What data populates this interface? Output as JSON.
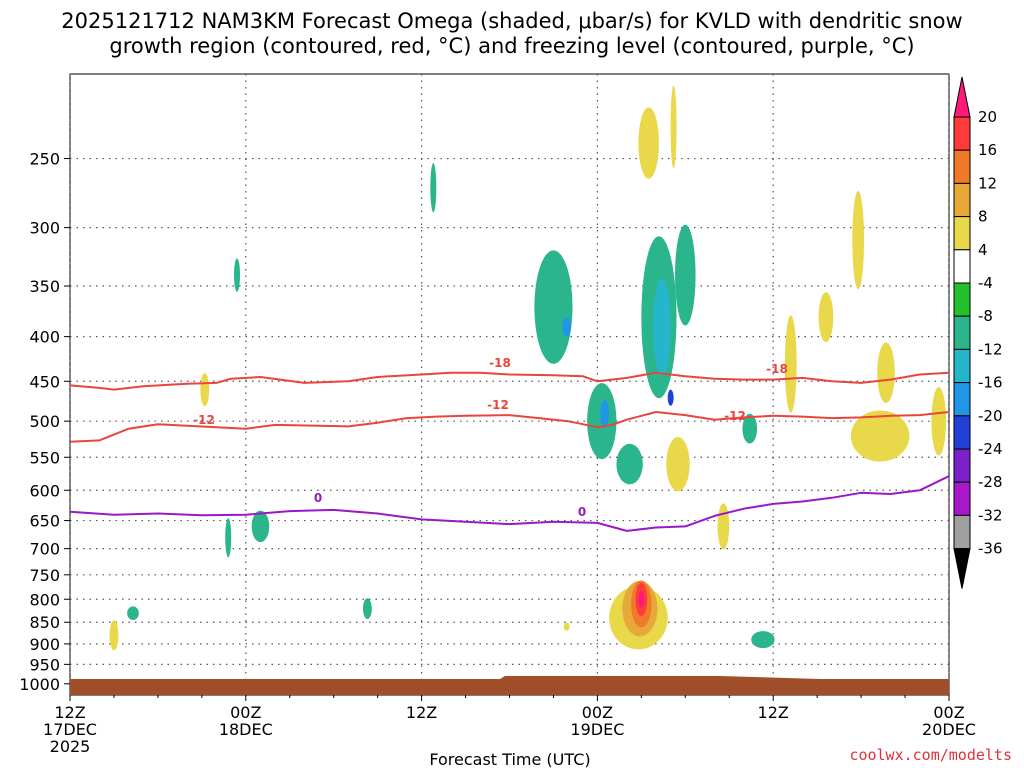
{
  "chart_data": {
    "type": "heatmap",
    "title_line1": "2025121712 NAM3KM Forecast Omega (shaded, μbar/s) for KVLD with dendritic snow",
    "title_line2": "growth region (contoured, red, °C) and freezing level (contoured, purple, °C)",
    "xlabel": "Forecast Time (UTC)",
    "credit": "coolwx.com/modelts",
    "x_range_hours": [
      0,
      60
    ],
    "x_ticks": [
      {
        "hour": 0,
        "line1": "12Z",
        "line2": "17DEC",
        "line3": "2025"
      },
      {
        "hour": 12,
        "line1": "00Z",
        "line2": "18DEC",
        "line3": ""
      },
      {
        "hour": 24,
        "line1": "12Z",
        "line2": "",
        "line3": ""
      },
      {
        "hour": 36,
        "line1": "00Z",
        "line2": "19DEC",
        "line3": ""
      },
      {
        "hour": 48,
        "line1": "12Z",
        "line2": "",
        "line3": ""
      },
      {
        "hour": 60,
        "line1": "00Z",
        "line2": "20DEC",
        "line3": ""
      }
    ],
    "y_ticks_hpa": [
      250,
      300,
      350,
      400,
      450,
      500,
      550,
      600,
      650,
      700,
      750,
      800,
      850,
      900,
      950,
      1000
    ],
    "y_range_hpa": [
      200,
      1030
    ],
    "colorbar": {
      "labels": [
        "20",
        "16",
        "12",
        "8",
        "4",
        "-4",
        "-8",
        "-12",
        "-16",
        "-20",
        "-24",
        "-28",
        "-32",
        "-36"
      ],
      "colors": [
        "#ff1a7a",
        "#ff3a3a",
        "#f07a2a",
        "#e6a838",
        "#e8d84a",
        "#ffffff",
        "#22c02a",
        "#2ab58c",
        "#26b6cc",
        "#2196e8",
        "#2240d8",
        "#7a22c8",
        "#a818c8",
        "#a0a0a0",
        "#000000"
      ]
    },
    "contour_labels": {
      "neg18": "-18",
      "neg12": "-12",
      "zero": "0"
    },
    "contours": [
      {
        "name": "minus18C",
        "color": "#e8453c",
        "label": "-18",
        "points": [
          [
            0,
            455
          ],
          [
            2,
            458
          ],
          [
            3,
            460
          ],
          [
            5,
            456
          ],
          [
            8,
            453
          ],
          [
            10,
            452
          ],
          [
            11,
            447
          ],
          [
            13,
            445
          ],
          [
            16,
            452
          ],
          [
            19,
            450
          ],
          [
            21,
            445
          ],
          [
            24,
            442
          ],
          [
            26,
            440
          ],
          [
            28,
            440
          ],
          [
            30,
            442
          ],
          [
            33,
            443
          ],
          [
            35,
            444
          ],
          [
            36,
            450
          ],
          [
            37,
            448
          ],
          [
            38,
            446
          ],
          [
            40,
            440
          ],
          [
            42,
            444
          ],
          [
            44,
            447
          ],
          [
            46,
            448
          ],
          [
            48,
            448
          ],
          [
            50,
            446
          ],
          [
            52,
            450
          ],
          [
            54,
            452
          ],
          [
            56,
            448
          ],
          [
            58,
            442
          ],
          [
            60,
            440
          ]
        ]
      },
      {
        "name": "minus12C",
        "color": "#e8453c",
        "label": "-12",
        "points": [
          [
            0,
            528
          ],
          [
            2,
            526
          ],
          [
            4,
            510
          ],
          [
            6,
            504
          ],
          [
            8,
            506
          ],
          [
            10,
            508
          ],
          [
            12,
            510
          ],
          [
            14,
            505
          ],
          [
            17,
            506
          ],
          [
            19,
            507
          ],
          [
            21,
            502
          ],
          [
            23,
            496
          ],
          [
            25,
            494
          ],
          [
            27,
            493
          ],
          [
            30,
            492
          ],
          [
            32,
            496
          ],
          [
            34,
            500
          ],
          [
            36,
            508
          ],
          [
            37,
            505
          ],
          [
            38,
            498
          ],
          [
            40,
            488
          ],
          [
            42,
            492
          ],
          [
            44,
            498
          ],
          [
            46,
            495
          ],
          [
            48,
            493
          ],
          [
            50,
            494
          ],
          [
            52,
            496
          ],
          [
            54,
            495
          ],
          [
            56,
            493
          ],
          [
            58,
            492
          ],
          [
            60,
            488
          ]
        ]
      },
      {
        "name": "freezing_0C",
        "color": "#9a18c8",
        "label": "0",
        "points": [
          [
            0,
            635
          ],
          [
            3,
            640
          ],
          [
            6,
            638
          ],
          [
            9,
            641
          ],
          [
            12,
            640
          ],
          [
            15,
            634
          ],
          [
            18,
            632
          ],
          [
            21,
            638
          ],
          [
            24,
            648
          ],
          [
            27,
            652
          ],
          [
            30,
            656
          ],
          [
            33,
            652
          ],
          [
            36,
            654
          ],
          [
            38,
            668
          ],
          [
            40,
            662
          ],
          [
            42,
            660
          ],
          [
            44,
            642
          ],
          [
            46,
            630
          ],
          [
            48,
            622
          ],
          [
            50,
            618
          ],
          [
            52,
            612
          ],
          [
            54,
            604
          ],
          [
            56,
            606
          ],
          [
            58,
            600
          ],
          [
            60,
            578
          ]
        ]
      }
    ],
    "omega_blobs": [
      {
        "omega": -8,
        "hour": 33.0,
        "p": 370,
        "dh": 1.3,
        "dp": 110
      },
      {
        "omega": -16,
        "hour": 33.9,
        "p": 390,
        "dh": 0.3,
        "dp": 20
      },
      {
        "omega": -8,
        "hour": 36.3,
        "p": 500,
        "dh": 1.0,
        "dp": 100
      },
      {
        "omega": -16,
        "hour": 36.5,
        "p": 490,
        "dh": 0.3,
        "dp": 35
      },
      {
        "omega": -8,
        "hour": 38.2,
        "p": 560,
        "dh": 0.9,
        "dp": 60
      },
      {
        "omega": -8,
        "hour": 40.2,
        "p": 380,
        "dh": 1.2,
        "dp": 160
      },
      {
        "omega": -12,
        "hour": 40.4,
        "p": 390,
        "dh": 0.6,
        "dp": 100
      },
      {
        "omega": -20,
        "hour": 41.0,
        "p": 470,
        "dh": 0.2,
        "dp": 20
      },
      {
        "omega": -8,
        "hour": 42.0,
        "p": 340,
        "dh": 0.7,
        "dp": 90
      },
      {
        "omega": -8,
        "hour": 46.4,
        "p": 510,
        "dh": 0.5,
        "dp": 40
      },
      {
        "omega": -8,
        "hour": 47.3,
        "p": 890,
        "dh": 0.8,
        "dp": 40
      },
      {
        "omega": -8,
        "hour": 13.0,
        "p": 660,
        "dh": 0.6,
        "dp": 55
      },
      {
        "omega": -8,
        "hour": 4.3,
        "p": 830,
        "dh": 0.4,
        "dp": 30
      },
      {
        "omega": -8,
        "hour": 10.8,
        "p": 680,
        "dh": 0.2,
        "dp": 70
      },
      {
        "omega": -8,
        "hour": 20.3,
        "p": 820,
        "dh": 0.3,
        "dp": 45
      },
      {
        "omega": -8,
        "hour": 11.4,
        "p": 340,
        "dh": 0.2,
        "dp": 30
      },
      {
        "omega": -8,
        "hour": 24.8,
        "p": 270,
        "dh": 0.2,
        "dp": 35
      },
      {
        "omega": 4,
        "hour": 38.8,
        "p": 840,
        "dh": 2.0,
        "dp": 140
      },
      {
        "omega": 8,
        "hour": 38.9,
        "p": 820,
        "dh": 1.2,
        "dp": 120
      },
      {
        "omega": 12,
        "hour": 39.0,
        "p": 810,
        "dh": 0.7,
        "dp": 100
      },
      {
        "omega": 16,
        "hour": 39.0,
        "p": 800,
        "dh": 0.4,
        "dp": 70
      },
      {
        "omega": 20,
        "hour": 39.0,
        "p": 800,
        "dh": 0.2,
        "dp": 35
      },
      {
        "omega": 4,
        "hour": 39.5,
        "p": 240,
        "dh": 0.7,
        "dp": 45
      },
      {
        "omega": 4,
        "hour": 41.2,
        "p": 230,
        "dh": 0.2,
        "dp": 50
      },
      {
        "omega": 4,
        "hour": 41.5,
        "p": 560,
        "dh": 0.8,
        "dp": 80
      },
      {
        "omega": 4,
        "hour": 44.6,
        "p": 660,
        "dh": 0.4,
        "dp": 80
      },
      {
        "omega": 4,
        "hour": 49.2,
        "p": 430,
        "dh": 0.4,
        "dp": 110
      },
      {
        "omega": 4,
        "hour": 51.6,
        "p": 380,
        "dh": 0.5,
        "dp": 50
      },
      {
        "omega": 4,
        "hour": 53.8,
        "p": 310,
        "dh": 0.4,
        "dp": 80
      },
      {
        "omega": 4,
        "hour": 55.3,
        "p": 520,
        "dh": 2.0,
        "dp": 70
      },
      {
        "omega": 4,
        "hour": 55.7,
        "p": 440,
        "dh": 0.6,
        "dp": 70
      },
      {
        "omega": 4,
        "hour": 59.3,
        "p": 500,
        "dh": 0.5,
        "dp": 90
      },
      {
        "omega": 4,
        "hour": 3.0,
        "p": 880,
        "dh": 0.3,
        "dp": 70
      },
      {
        "omega": 4,
        "hour": 9.2,
        "p": 460,
        "dh": 0.3,
        "dp": 40
      },
      {
        "omega": 4,
        "hour": 33.9,
        "p": 860,
        "dh": 0.2,
        "dp": 15
      }
    ]
  }
}
